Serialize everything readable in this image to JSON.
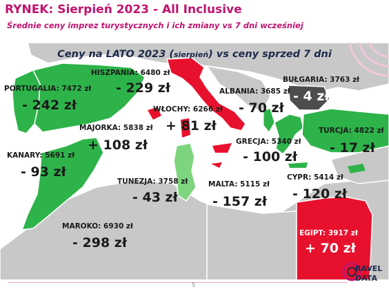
{
  "header": {
    "title": "RYNEK: Sierpień 2023 - All Inclusive",
    "subtitle": "Średnie ceny imprez turystycznych i ich zmiany vs 7 dni wcześniej"
  },
  "map": {
    "title_main": "Ceny na LATO 2023 (",
    "title_small": "sierpień",
    "title_end": ") vs ceny sprzed 7 dni",
    "colors": {
      "decrease": "#2db34a",
      "decrease_light": "#7ed57f",
      "increase": "#e8112d",
      "neutral": "#4d4d4d",
      "land": "#c8c8c8",
      "sea": "#ffffff"
    },
    "countries": [
      {
        "id": "hiszpania",
        "label": "HISZPANIA: 6480 zł",
        "change": "- 229 zł",
        "price": 6480,
        "delta": -229
      },
      {
        "id": "portugalia",
        "label": "PORTUGALIA: 7472 zł",
        "change": "- 242 zł",
        "price": 7472,
        "delta": -242
      },
      {
        "id": "wlochy",
        "label": "WŁOCHY: 6266 zł",
        "change": "+ 81 zł",
        "price": 6266,
        "delta": 81
      },
      {
        "id": "albania",
        "label": "ALBANIA: 3685 zł",
        "change": "- 70 zł",
        "price": 3685,
        "delta": -70
      },
      {
        "id": "bulgaria",
        "label": "BUŁGARIA: 3763 zł",
        "change": "- 4 zł",
        "price": 3763,
        "delta": -4
      },
      {
        "id": "majorka",
        "label": "MAJORKA: 5838 zł",
        "change": "+ 108 zł",
        "price": 5838,
        "delta": 108
      },
      {
        "id": "turcja",
        "label": "TURCJA: 4822 zł",
        "change": "- 17 zł",
        "price": 4822,
        "delta": -17
      },
      {
        "id": "grecja",
        "label": "GRECJA: 5340 zł",
        "change": "- 100 zł",
        "price": 5340,
        "delta": -100
      },
      {
        "id": "kanary",
        "label": "KANARY: 5691 zł",
        "change": "- 93 zł",
        "price": 5691,
        "delta": -93
      },
      {
        "id": "tunezja",
        "label": "TUNEZJA: 3758 zł",
        "change": "- 43 zł",
        "price": 3758,
        "delta": -43
      },
      {
        "id": "malta",
        "label": "MALTA: 5115 zł",
        "change": "- 157 zł",
        "price": 5115,
        "delta": -157
      },
      {
        "id": "cypr",
        "label": "CYPR: 5414 zł",
        "change": "- 120 zł",
        "price": 5414,
        "delta": -120
      },
      {
        "id": "maroko",
        "label": "MAROKO: 6930 zł",
        "change": "- 298 zł",
        "price": 6930,
        "delta": -298
      },
      {
        "id": "egipt",
        "label": "EGIPT: 3917 zł",
        "change": "+ 70 zł",
        "price": 3917,
        "delta": 70
      }
    ]
  },
  "footer": {
    "page_number": "5",
    "logo_line1": "RAVEL",
    "logo_line2": "DATA"
  }
}
